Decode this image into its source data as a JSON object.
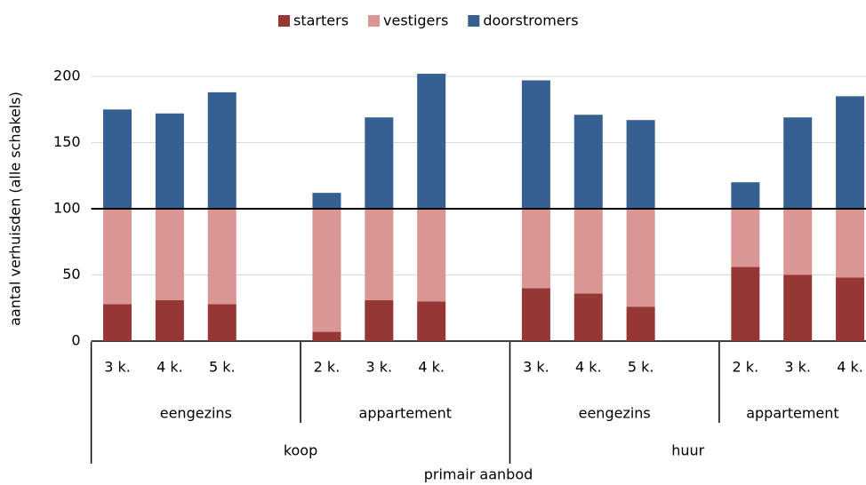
{
  "chart_data": {
    "type": "stacked-bar",
    "y_label": "aantal verhuisden (alle schakels)",
    "x_label": "primair aanbod",
    "categories": [
      "3 k.",
      "4 k.",
      "5 k.",
      null,
      "2 k.",
      "3 k.",
      "4 k.",
      null,
      "3 k.",
      "4 k.",
      "5 k.",
      null,
      "2 k.",
      "3 k.",
      "4 k."
    ],
    "group_labels": [
      "eengezins",
      "appartement",
      "eengezins",
      "appartement"
    ],
    "top_labels": [
      "koop",
      "huur"
    ],
    "series": [
      {
        "name": "starters",
        "color": "#953735",
        "values": [
          28,
          31,
          28,
          null,
          7,
          31,
          30,
          null,
          40,
          36,
          26,
          null,
          56,
          50,
          48
        ]
      },
      {
        "name": "vestigers",
        "color": "#d99694",
        "values": [
          72,
          69,
          72,
          null,
          93,
          69,
          70,
          null,
          60,
          64,
          74,
          null,
          44,
          50,
          52
        ]
      },
      {
        "name": "doorstromers",
        "color": "#376092",
        "values": [
          75,
          72,
          88,
          null,
          12,
          69,
          102,
          null,
          97,
          71,
          67,
          null,
          20,
          69,
          85
        ]
      }
    ],
    "ylim": [
      0,
      210
    ],
    "yticks": [
      0,
      50,
      100,
      150,
      200
    ],
    "grid": true,
    "reference_line": 100,
    "legend": "top"
  }
}
